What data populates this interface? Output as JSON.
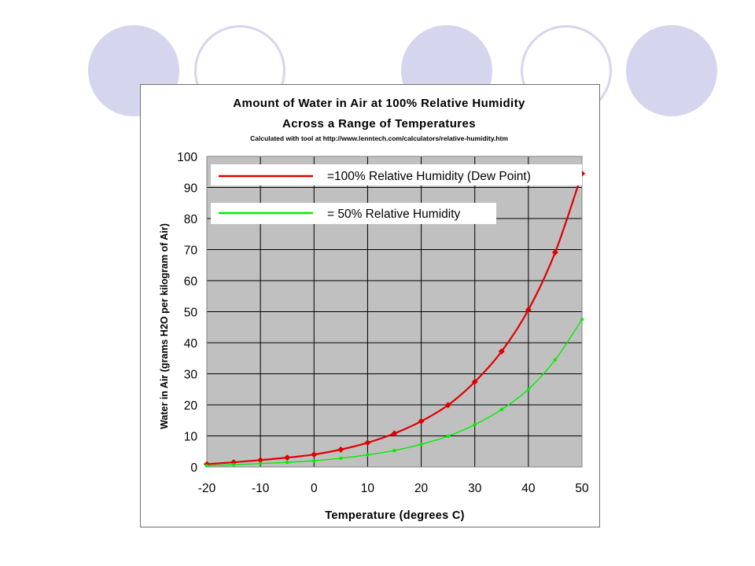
{
  "slide": {
    "decor_color": "#d5d6ee",
    "circles": [
      "filled",
      "outline",
      "filled",
      "outline",
      "filled"
    ]
  },
  "chart_data": {
    "type": "line",
    "title": "Amount of Water in Air at 100% Relative Humidity",
    "subtitle": "Across a Range of Temperatures",
    "source_note": "Calculated with tool at http://www.lenntech.com/calculators/relative-humidity.htm",
    "xlabel": "Temperature (degrees C)",
    "ylabel": "Water in Air (grams H2O per kilogram of Air)",
    "xlim": [
      -20,
      50
    ],
    "ylim": [
      0,
      100
    ],
    "xticks": [
      -20,
      -10,
      0,
      10,
      20,
      30,
      40,
      50
    ],
    "yticks": [
      0,
      10,
      20,
      30,
      40,
      50,
      60,
      70,
      80,
      90,
      100
    ],
    "grid": true,
    "plot_background": "#c0c0c0",
    "legend_position": "top-left",
    "series": [
      {
        "name": "=100% Relative Humidity (Dew Point)",
        "color": "#e00000",
        "marker": "diamond",
        "x": [
          -20,
          -15,
          -10,
          -5,
          0,
          5,
          10,
          15,
          20,
          25,
          30,
          35,
          40,
          45,
          50
        ],
        "y": [
          0.9,
          1.5,
          2.2,
          3.0,
          4.0,
          5.6,
          7.8,
          10.8,
          14.7,
          19.9,
          27.4,
          37.2,
          50.6,
          69.1,
          94.5
        ]
      },
      {
        "name": "= 50% Relative Humidity",
        "color": "#00ee00",
        "marker": "circle",
        "x": [
          -20,
          -15,
          -10,
          -5,
          0,
          5,
          10,
          15,
          20,
          25,
          30,
          35,
          40,
          45,
          50
        ],
        "y": [
          0.4,
          0.7,
          1.1,
          1.5,
          2.0,
          2.8,
          3.9,
          5.3,
          7.3,
          9.9,
          13.6,
          18.5,
          25.0,
          34.5,
          47.5
        ]
      }
    ]
  }
}
